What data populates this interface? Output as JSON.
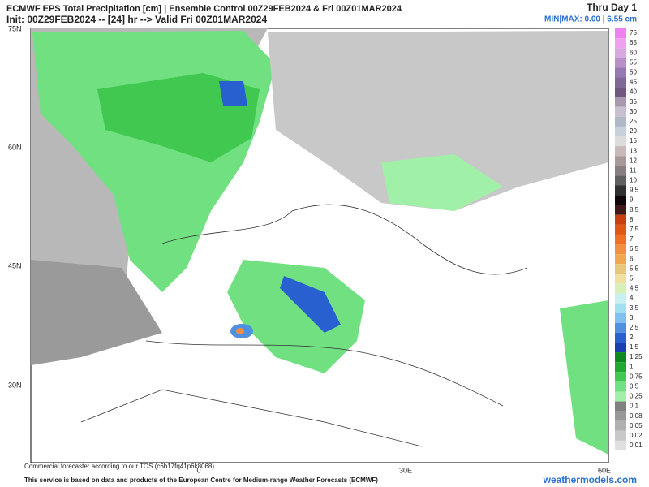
{
  "header": {
    "title": "ECMWF EPS Total Precipitation [cm] | Ensemble Control 00Z29FEB2024 & Fri 00Z01MAR2024",
    "subtitle": "Init: 00Z29FEB2024 -- [24] hr --> Valid Fri 00Z01MAR2024",
    "period": "Thru Day 1",
    "minmax": "MIN|MAX: 0.00 | 6.55 cm"
  },
  "map": {
    "lat_labels": [
      "75N",
      "60N",
      "45N",
      "30N"
    ],
    "lon_labels": [
      "0",
      "30E",
      "60E"
    ]
  },
  "legend": [
    {
      "label": "75",
      "color": "#ee82ee"
    },
    {
      "label": "65",
      "color": "#f0a0ee"
    },
    {
      "label": "60",
      "color": "#d8a8e0"
    },
    {
      "label": "55",
      "color": "#b890c8"
    },
    {
      "label": "50",
      "color": "#9878b0"
    },
    {
      "label": "45",
      "color": "#806898"
    },
    {
      "label": "40",
      "color": "#705880"
    },
    {
      "label": "35",
      "color": "#a898b0"
    },
    {
      "label": "30",
      "color": "#c8c0d0"
    },
    {
      "label": "25",
      "color": "#b0b8c8"
    },
    {
      "label": "20",
      "color": "#c8d0dc"
    },
    {
      "label": "15",
      "color": "#dcdcdc"
    },
    {
      "label": "13",
      "color": "#c8b8b8"
    },
    {
      "label": "12",
      "color": "#a89898"
    },
    {
      "label": "11",
      "color": "#888080"
    },
    {
      "label": "10",
      "color": "#606060"
    },
    {
      "label": "9.5",
      "color": "#303030"
    },
    {
      "label": "9",
      "color": "#100808"
    },
    {
      "label": "8.5",
      "color": "#401818"
    },
    {
      "label": "8",
      "color": "#c84010"
    },
    {
      "label": "7.5",
      "color": "#e05818"
    },
    {
      "label": "7",
      "color": "#f07028"
    },
    {
      "label": "6.5",
      "color": "#f09040"
    },
    {
      "label": "6",
      "color": "#f0a850"
    },
    {
      "label": "5.5",
      "color": "#e8c878"
    },
    {
      "label": "5",
      "color": "#f0e0a0"
    },
    {
      "label": "4.5",
      "color": "#d8f0b8"
    },
    {
      "label": "4",
      "color": "#c8f0f0"
    },
    {
      "label": "3.5",
      "color": "#a0e0f0"
    },
    {
      "label": "3",
      "color": "#80c0f0"
    },
    {
      "label": "2.5",
      "color": "#5090e0"
    },
    {
      "label": "2",
      "color": "#2860d0"
    },
    {
      "label": "1.5",
      "color": "#1840b0"
    },
    {
      "label": "1.25",
      "color": "#108820"
    },
    {
      "label": "1",
      "color": "#20a830"
    },
    {
      "label": "0.75",
      "color": "#40c850"
    },
    {
      "label": "0.5",
      "color": "#70e080"
    },
    {
      "label": "0.25",
      "color": "#a0f0a8"
    },
    {
      "label": "0.1",
      "color": "#808080"
    },
    {
      "label": "0.08",
      "color": "#989898"
    },
    {
      "label": "0.05",
      "color": "#b0b0b0"
    },
    {
      "label": "0.02",
      "color": "#c8c8c8"
    },
    {
      "label": "0.01",
      "color": "#e0e0e0"
    }
  ],
  "footer": {
    "tos": "Commercial forecaster according to our TOS (c6b17fq41p6k8068)",
    "credit": "This service is based on data and products of the European Centre for Medium-range Weather Forecasts (ECMWF)",
    "brand": "weathermodels.com"
  }
}
